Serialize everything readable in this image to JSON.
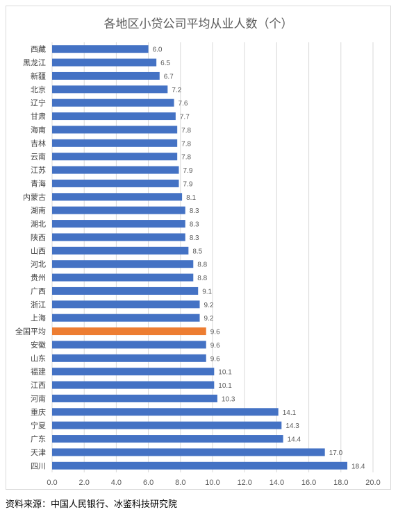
{
  "chart_data": {
    "type": "bar",
    "orientation": "horizontal",
    "title": "各地区小贷公司平均从业人数（个）",
    "categories": [
      "西藏",
      "黑龙江",
      "新疆",
      "北京",
      "辽宁",
      "甘肃",
      "海南",
      "吉林",
      "云南",
      "江苏",
      "青海",
      "内蒙古",
      "湖南",
      "湖北",
      "陕西",
      "山西",
      "河北",
      "贵州",
      "广西",
      "浙江",
      "上海",
      "全国平均",
      "安徽",
      "山东",
      "福建",
      "江西",
      "河南",
      "重庆",
      "宁夏",
      "广东",
      "天津",
      "四川"
    ],
    "values": [
      6.0,
      6.5,
      6.7,
      7.2,
      7.6,
      7.7,
      7.8,
      7.8,
      7.8,
      7.9,
      7.9,
      8.1,
      8.3,
      8.3,
      8.3,
      8.5,
      8.8,
      8.8,
      9.1,
      9.2,
      9.2,
      9.6,
      9.6,
      9.6,
      10.1,
      10.1,
      10.3,
      14.1,
      14.3,
      14.4,
      17.0,
      18.4
    ],
    "value_labels": [
      "6.0",
      "6.5",
      "6.7",
      "7.2",
      "7.6",
      "7.7",
      "7.8",
      "7.8",
      "7.8",
      "7.9",
      "7.9",
      "8.1",
      "8.3",
      "8.3",
      "8.3",
      "8.5",
      "8.8",
      "8.8",
      "9.1",
      "9.2",
      "9.2",
      "9.6",
      "9.6",
      "9.6",
      "10.1",
      "10.1",
      "10.3",
      "14.1",
      "14.3",
      "14.4",
      "17.0",
      "18.4"
    ],
    "highlight_category": "全国平均",
    "xlim": [
      0,
      20
    ],
    "xticks": [
      "0.0",
      "2.0",
      "4.0",
      "6.0",
      "8.0",
      "10.0",
      "12.0",
      "14.0",
      "16.0",
      "18.0",
      "20.0"
    ],
    "grid": true,
    "legend": "none",
    "colors": {
      "bar": "#4472c4",
      "highlight": "#ed7d31",
      "grid": "#d9d9d9",
      "text": "#595959"
    }
  },
  "source_note": "资料来源：中国人民银行、冰鉴科技研究院"
}
